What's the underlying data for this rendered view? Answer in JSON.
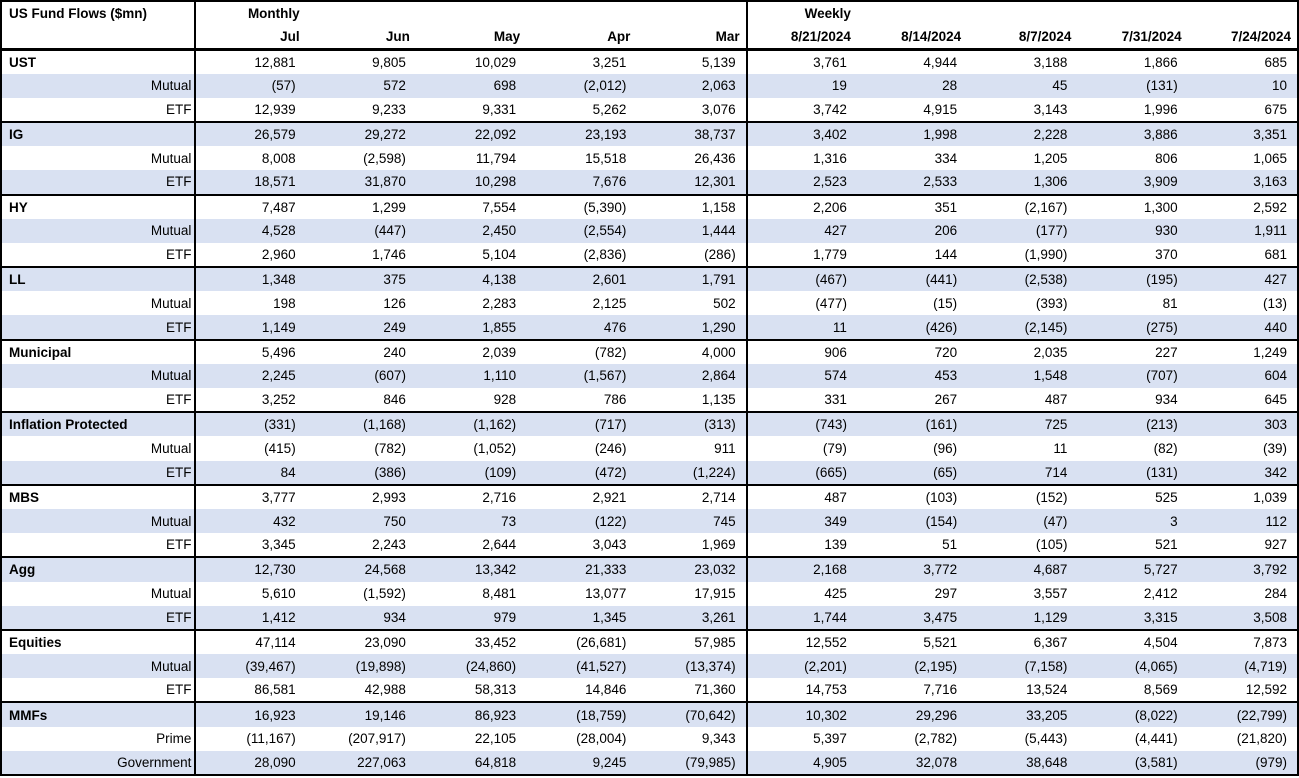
{
  "colors": {
    "stripe": "#d9e1f2",
    "border": "#000000",
    "text": "#000000",
    "background": "#ffffff"
  },
  "chart_data": {
    "type": "table",
    "title": "US Fund Flows ($mn)",
    "sections": [
      {
        "label": "Monthly",
        "columns": [
          "Jul",
          "Jun",
          "May",
          "Apr",
          "Mar"
        ]
      },
      {
        "label": "Weekly",
        "columns": [
          "8/21/2024",
          "8/14/2024",
          "8/7/2024",
          "7/31/2024",
          "7/24/2024"
        ]
      }
    ],
    "groups": [
      {
        "name": "UST",
        "total": {
          "monthly": [
            "12,881",
            "9,805",
            "10,029",
            "3,251",
            "5,139"
          ],
          "weekly": [
            "3,761",
            "4,944",
            "3,188",
            "1,866",
            "685"
          ]
        },
        "subs": [
          {
            "label": "Mutual",
            "monthly": [
              "(57)",
              "572",
              "698",
              "(2,012)",
              "2,063"
            ],
            "weekly": [
              "19",
              "28",
              "45",
              "(131)",
              "10"
            ]
          },
          {
            "label": "ETF",
            "monthly": [
              "12,939",
              "9,233",
              "9,331",
              "5,262",
              "3,076"
            ],
            "weekly": [
              "3,742",
              "4,915",
              "3,143",
              "1,996",
              "675"
            ]
          }
        ]
      },
      {
        "name": "IG",
        "total": {
          "monthly": [
            "26,579",
            "29,272",
            "22,092",
            "23,193",
            "38,737"
          ],
          "weekly": [
            "3,402",
            "1,998",
            "2,228",
            "3,886",
            "3,351"
          ]
        },
        "subs": [
          {
            "label": "Mutual",
            "monthly": [
              "8,008",
              "(2,598)",
              "11,794",
              "15,518",
              "26,436"
            ],
            "weekly": [
              "1,316",
              "334",
              "1,205",
              "806",
              "1,065"
            ]
          },
          {
            "label": "ETF",
            "monthly": [
              "18,571",
              "31,870",
              "10,298",
              "7,676",
              "12,301"
            ],
            "weekly": [
              "2,523",
              "2,533",
              "1,306",
              "3,909",
              "3,163"
            ]
          }
        ]
      },
      {
        "name": "HY",
        "total": {
          "monthly": [
            "7,487",
            "1,299",
            "7,554",
            "(5,390)",
            "1,158"
          ],
          "weekly": [
            "2,206",
            "351",
            "(2,167)",
            "1,300",
            "2,592"
          ]
        },
        "subs": [
          {
            "label": "Mutual",
            "monthly": [
              "4,528",
              "(447)",
              "2,450",
              "(2,554)",
              "1,444"
            ],
            "weekly": [
              "427",
              "206",
              "(177)",
              "930",
              "1,911"
            ]
          },
          {
            "label": "ETF",
            "monthly": [
              "2,960",
              "1,746",
              "5,104",
              "(2,836)",
              "(286)"
            ],
            "weekly": [
              "1,779",
              "144",
              "(1,990)",
              "370",
              "681"
            ]
          }
        ]
      },
      {
        "name": "LL",
        "total": {
          "monthly": [
            "1,348",
            "375",
            "4,138",
            "2,601",
            "1,791"
          ],
          "weekly": [
            "(467)",
            "(441)",
            "(2,538)",
            "(195)",
            "427"
          ]
        },
        "subs": [
          {
            "label": "Mutual",
            "monthly": [
              "198",
              "126",
              "2,283",
              "2,125",
              "502"
            ],
            "weekly": [
              "(477)",
              "(15)",
              "(393)",
              "81",
              "(13)"
            ]
          },
          {
            "label": "ETF",
            "monthly": [
              "1,149",
              "249",
              "1,855",
              "476",
              "1,290"
            ],
            "weekly": [
              "11",
              "(426)",
              "(2,145)",
              "(275)",
              "440"
            ]
          }
        ]
      },
      {
        "name": "Municipal",
        "total": {
          "monthly": [
            "5,496",
            "240",
            "2,039",
            "(782)",
            "4,000"
          ],
          "weekly": [
            "906",
            "720",
            "2,035",
            "227",
            "1,249"
          ]
        },
        "subs": [
          {
            "label": "Mutual",
            "monthly": [
              "2,245",
              "(607)",
              "1,110",
              "(1,567)",
              "2,864"
            ],
            "weekly": [
              "574",
              "453",
              "1,548",
              "(707)",
              "604"
            ]
          },
          {
            "label": "ETF",
            "monthly": [
              "3,252",
              "846",
              "928",
              "786",
              "1,135"
            ],
            "weekly": [
              "331",
              "267",
              "487",
              "934",
              "645"
            ]
          }
        ]
      },
      {
        "name": "Inflation Protected",
        "total": {
          "monthly": [
            "(331)",
            "(1,168)",
            "(1,162)",
            "(717)",
            "(313)"
          ],
          "weekly": [
            "(743)",
            "(161)",
            "725",
            "(213)",
            "303"
          ]
        },
        "subs": [
          {
            "label": "Mutual",
            "monthly": [
              "(415)",
              "(782)",
              "(1,052)",
              "(246)",
              "911"
            ],
            "weekly": [
              "(79)",
              "(96)",
              "11",
              "(82)",
              "(39)"
            ]
          },
          {
            "label": "ETF",
            "monthly": [
              "84",
              "(386)",
              "(109)",
              "(472)",
              "(1,224)"
            ],
            "weekly": [
              "(665)",
              "(65)",
              "714",
              "(131)",
              "342"
            ]
          }
        ]
      },
      {
        "name": "MBS",
        "total": {
          "monthly": [
            "3,777",
            "2,993",
            "2,716",
            "2,921",
            "2,714"
          ],
          "weekly": [
            "487",
            "(103)",
            "(152)",
            "525",
            "1,039"
          ]
        },
        "subs": [
          {
            "label": "Mutual",
            "monthly": [
              "432",
              "750",
              "73",
              "(122)",
              "745"
            ],
            "weekly": [
              "349",
              "(154)",
              "(47)",
              "3",
              "112"
            ]
          },
          {
            "label": "ETF",
            "monthly": [
              "3,345",
              "2,243",
              "2,644",
              "3,043",
              "1,969"
            ],
            "weekly": [
              "139",
              "51",
              "(105)",
              "521",
              "927"
            ]
          }
        ]
      },
      {
        "name": "Agg",
        "total": {
          "monthly": [
            "12,730",
            "24,568",
            "13,342",
            "21,333",
            "23,032"
          ],
          "weekly": [
            "2,168",
            "3,772",
            "4,687",
            "5,727",
            "3,792"
          ]
        },
        "subs": [
          {
            "label": "Mutual",
            "monthly": [
              "5,610",
              "(1,592)",
              "8,481",
              "13,077",
              "17,915"
            ],
            "weekly": [
              "425",
              "297",
              "3,557",
              "2,412",
              "284"
            ]
          },
          {
            "label": "ETF",
            "monthly": [
              "1,412",
              "934",
              "979",
              "1,345",
              "3,261"
            ],
            "weekly": [
              "1,744",
              "3,475",
              "1,129",
              "3,315",
              "3,508"
            ]
          }
        ]
      },
      {
        "name": "Equities",
        "total": {
          "monthly": [
            "47,114",
            "23,090",
            "33,452",
            "(26,681)",
            "57,985"
          ],
          "weekly": [
            "12,552",
            "5,521",
            "6,367",
            "4,504",
            "7,873"
          ]
        },
        "subs": [
          {
            "label": "Mutual",
            "monthly": [
              "(39,467)",
              "(19,898)",
              "(24,860)",
              "(41,527)",
              "(13,374)"
            ],
            "weekly": [
              "(2,201)",
              "(2,195)",
              "(7,158)",
              "(4,065)",
              "(4,719)"
            ]
          },
          {
            "label": "ETF",
            "monthly": [
              "86,581",
              "42,988",
              "58,313",
              "14,846",
              "71,360"
            ],
            "weekly": [
              "14,753",
              "7,716",
              "13,524",
              "8,569",
              "12,592"
            ]
          }
        ]
      },
      {
        "name": "MMFs",
        "total": {
          "monthly": [
            "16,923",
            "19,146",
            "86,923",
            "(18,759)",
            "(70,642)"
          ],
          "weekly": [
            "10,302",
            "29,296",
            "33,205",
            "(8,022)",
            "(22,799)"
          ]
        },
        "subs": [
          {
            "label": "Prime",
            "monthly": [
              "(11,167)",
              "(207,917)",
              "22,105",
              "(28,004)",
              "9,343"
            ],
            "weekly": [
              "5,397",
              "(2,782)",
              "(5,443)",
              "(4,441)",
              "(21,820)"
            ]
          },
          {
            "label": "Government",
            "monthly": [
              "28,090",
              "227,063",
              "64,818",
              "9,245",
              "(79,985)"
            ],
            "weekly": [
              "4,905",
              "32,078",
              "38,648",
              "(3,581)",
              "(979)"
            ]
          }
        ]
      }
    ]
  }
}
